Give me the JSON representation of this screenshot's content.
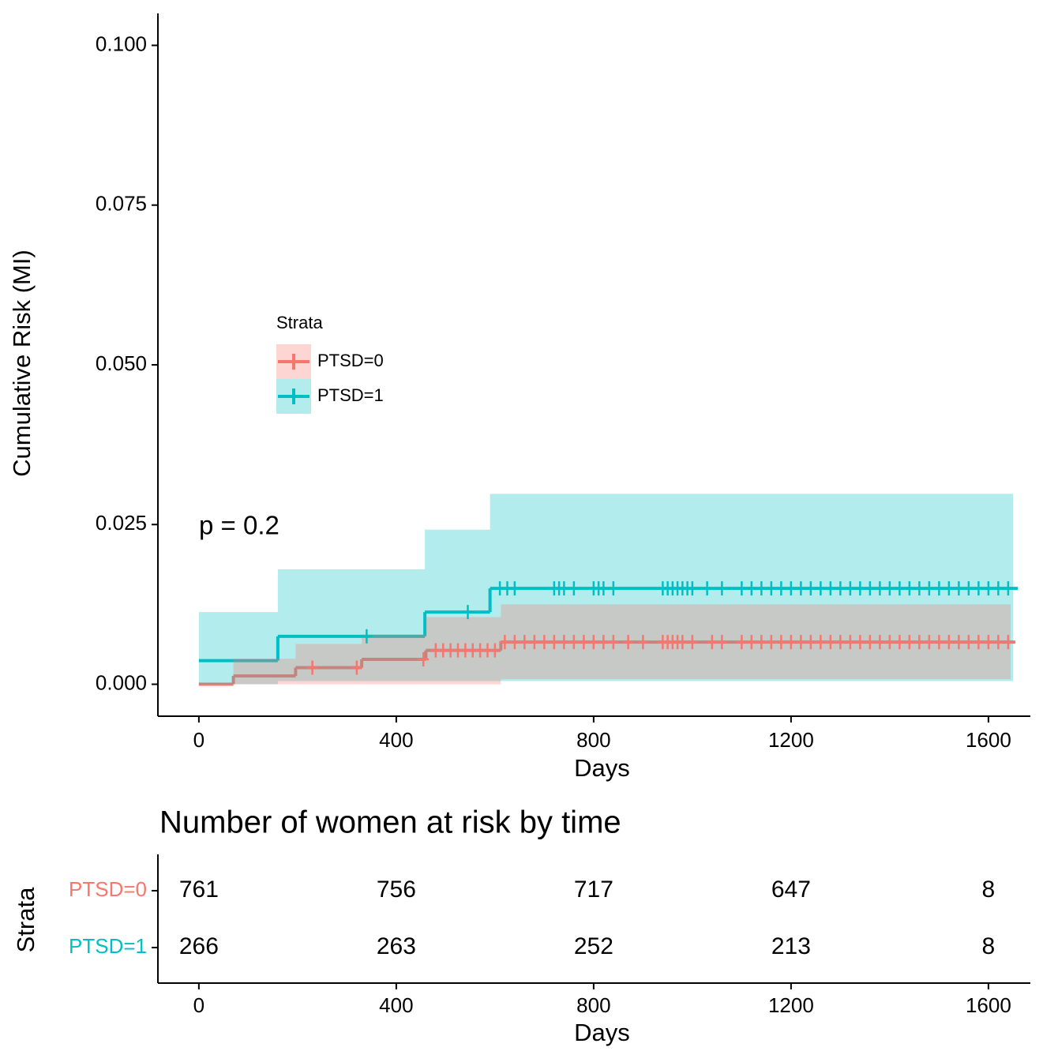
{
  "chart_data": [
    {
      "type": "step",
      "x_label": "Days",
      "y_label": "Cumulative Risk (MI)",
      "legend_title": "Strata",
      "annotations": [
        "p = 0.2"
      ],
      "xlim": [
        -83,
        1685
      ],
      "ylim": [
        -0.005,
        0.105
      ],
      "xticks": [
        0,
        400,
        800,
        1200,
        1600
      ],
      "yticks": [
        {
          "value": 0,
          "label": "0.000"
        },
        {
          "value": 0.025,
          "label": "0.025"
        },
        {
          "value": 0.05,
          "label": "0.050"
        },
        {
          "value": 0.075,
          "label": "0.075"
        },
        {
          "value": 0.1,
          "label": "0.100"
        }
      ],
      "series": [
        {
          "name": "PTSD=1",
          "color": "#00BFC4",
          "x": [
            0,
            160,
            458,
            590,
            1650
          ],
          "values": [
            0.0037,
            0.0075,
            0.0113,
            0.015,
            0.015
          ],
          "upper": [
            0.0113,
            0.018,
            0.0242,
            0.0298,
            0.0298
          ],
          "lower": [
            0,
            0.0005,
            0.0005,
            0.0005,
            0.0005
          ],
          "censored": {
            "x": [
              340,
              545,
              610,
              625,
              640,
              720,
              730,
              740,
              760,
              800,
              810,
              820,
              840,
              940,
              950,
              960,
              970,
              980,
              990,
              1000,
              1030,
              1060,
              1100,
              1120,
              1140,
              1160,
              1180,
              1200,
              1220,
              1240,
              1260,
              1280,
              1300,
              1320,
              1340,
              1360,
              1380,
              1400,
              1420,
              1440,
              1460,
              1480,
              1500,
              1520,
              1540,
              1560,
              1580,
              1600,
              1620,
              1640
            ],
            "y": [
              0.0075,
              0.0113,
              0.015,
              0.015,
              0.015,
              0.015,
              0.015,
              0.015,
              0.015,
              0.015,
              0.015,
              0.015,
              0.015,
              0.015,
              0.015,
              0.015,
              0.015,
              0.015,
              0.015,
              0.015,
              0.015,
              0.015,
              0.015,
              0.015,
              0.015,
              0.015,
              0.015,
              0.015,
              0.015,
              0.015,
              0.015,
              0.015,
              0.015,
              0.015,
              0.015,
              0.015,
              0.015,
              0.015,
              0.015,
              0.015,
              0.015,
              0.015,
              0.015,
              0.015,
              0.015,
              0.015,
              0.015,
              0.015,
              0.015,
              0.015
            ]
          }
        },
        {
          "name": "PTSD=0",
          "color": "#F8766D",
          "x": [
            0,
            70,
            196,
            330,
            460,
            612,
            1645
          ],
          "values": [
            0,
            0.0013,
            0.0026,
            0.0039,
            0.0053,
            0.0066,
            0.0066
          ],
          "upper": [
            0,
            0.004,
            0.0063,
            0.0078,
            0.0105,
            0.0125,
            0.0125
          ],
          "lower": [
            0,
            0,
            0,
            0,
            0,
            0.0008,
            0.0008
          ],
          "censored": {
            "x": [
              230,
              320,
              455,
              480,
              495,
              510,
              525,
              540,
              555,
              570,
              585,
              600,
              620,
              640,
              660,
              680,
              700,
              720,
              740,
              760,
              780,
              800,
              820,
              840,
              870,
              900,
              940,
              950,
              960,
              970,
              980,
              1000,
              1040,
              1060,
              1100,
              1120,
              1140,
              1160,
              1180,
              1200,
              1220,
              1240,
              1260,
              1280,
              1300,
              1320,
              1340,
              1360,
              1380,
              1400,
              1420,
              1440,
              1460,
              1480,
              1500,
              1520,
              1540,
              1560,
              1580,
              1600,
              1620,
              1640
            ],
            "y": [
              0.0026,
              0.0026,
              0.0039,
              0.0053,
              0.0053,
              0.0053,
              0.0053,
              0.0053,
              0.0053,
              0.0053,
              0.0053,
              0.0053,
              0.0066,
              0.0066,
              0.0066,
              0.0066,
              0.0066,
              0.0066,
              0.0066,
              0.0066,
              0.0066,
              0.0066,
              0.0066,
              0.0066,
              0.0066,
              0.0066,
              0.0066,
              0.0066,
              0.0066,
              0.0066,
              0.0066,
              0.0066,
              0.0066,
              0.0066,
              0.0066,
              0.0066,
              0.0066,
              0.0066,
              0.0066,
              0.0066,
              0.0066,
              0.0066,
              0.0066,
              0.0066,
              0.0066,
              0.0066,
              0.0066,
              0.0066,
              0.0066,
              0.0066,
              0.0066,
              0.0066,
              0.0066,
              0.0066,
              0.0066,
              0.0066,
              0.0066,
              0.0066,
              0.0066,
              0.0066,
              0.0066,
              0.0066
            ]
          }
        }
      ]
    },
    {
      "type": "table",
      "title": "Number of women at risk by time",
      "x_label": "Days",
      "y_label": "Strata",
      "xlim": [
        -83,
        1685
      ],
      "xticks": [
        0,
        400,
        800,
        1200,
        1600
      ],
      "rows": [
        {
          "name": "PTSD=0",
          "color": "#F8766D",
          "values": [
            761,
            756,
            717,
            647,
            8
          ]
        },
        {
          "name": "PTSD=1",
          "color": "#00BFC4",
          "values": [
            266,
            263,
            252,
            213,
            8
          ]
        }
      ]
    }
  ]
}
